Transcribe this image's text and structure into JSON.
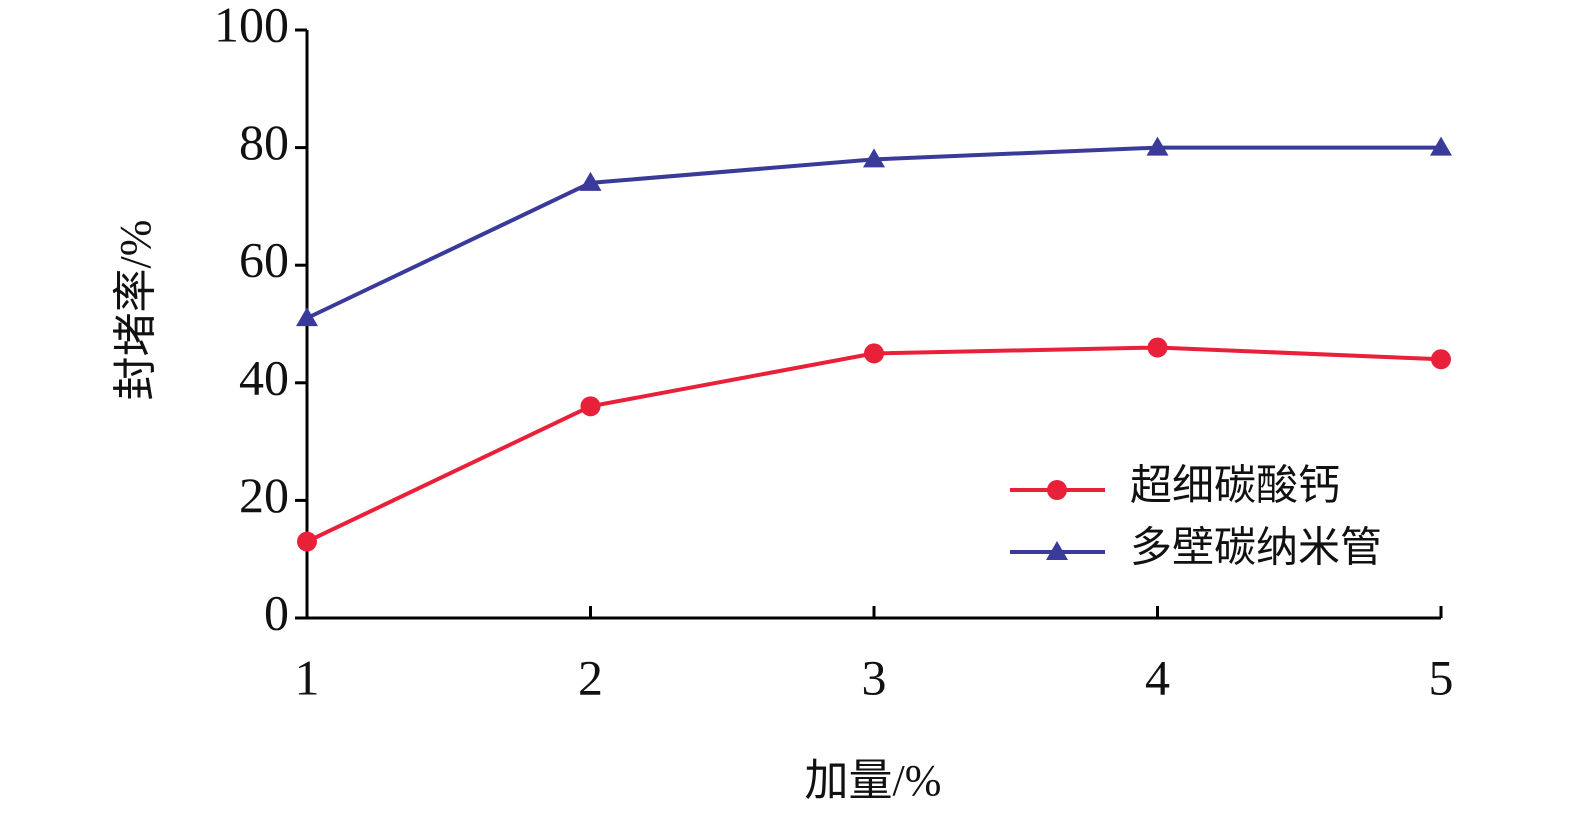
{
  "chart_data": {
    "type": "line",
    "x_label": "加量/%",
    "y_label": "封堵率/%",
    "x": [
      1,
      2,
      3,
      4,
      5
    ],
    "xlim": [
      1,
      5
    ],
    "xticks": [
      1,
      2,
      3,
      4,
      5
    ],
    "ylim": [
      0,
      100
    ],
    "yticks": [
      0,
      20,
      40,
      60,
      80,
      100
    ],
    "grid": false,
    "legend": "lower right",
    "series": [
      {
        "name": "超细碳酸钙",
        "color": "#e8203a",
        "marker": "circle",
        "values": [
          13,
          36,
          45,
          46,
          44
        ]
      },
      {
        "name": "多壁碳纳米管",
        "color": "#3a3a9a",
        "marker": "triangle",
        "values": [
          51,
          74,
          78,
          80,
          80
        ]
      }
    ]
  }
}
